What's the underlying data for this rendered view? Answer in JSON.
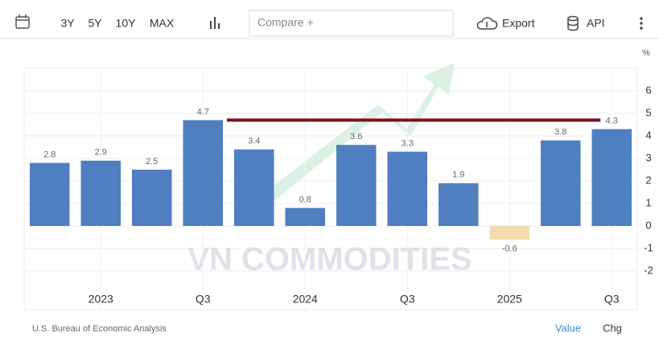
{
  "toolbar": {
    "ranges": [
      "3Y",
      "5Y",
      "10Y",
      "MAX"
    ],
    "compare": "Compare +",
    "export": "Export",
    "api": "API"
  },
  "chart_data": {
    "type": "bar",
    "categories": [
      null,
      "2023",
      null,
      "Q3",
      null,
      "2024",
      null,
      "Q3",
      null,
      "2025",
      null,
      "Q3"
    ],
    "values": [
      2.8,
      2.9,
      2.5,
      4.7,
      3.4,
      0.8,
      3.6,
      3.3,
      1.9,
      -0.6,
      3.8,
      4.3
    ],
    "color": "#4f7fc0",
    "negative_color": "#f2dcb0",
    "ylim": [
      -3,
      7
    ],
    "yticks": [
      -2,
      -1,
      0,
      1,
      2,
      3,
      4,
      5,
      6
    ],
    "y_unit": "%",
    "grid": true,
    "reference_line": {
      "value": 4.7,
      "color": "#7a1222",
      "start": 4,
      "end": 11
    },
    "watermark": "VN COMMODITIES"
  },
  "footer": {
    "source": "U.S. Bureau of Economic Analysis",
    "tabs": [
      "Value",
      "Chg"
    ]
  }
}
